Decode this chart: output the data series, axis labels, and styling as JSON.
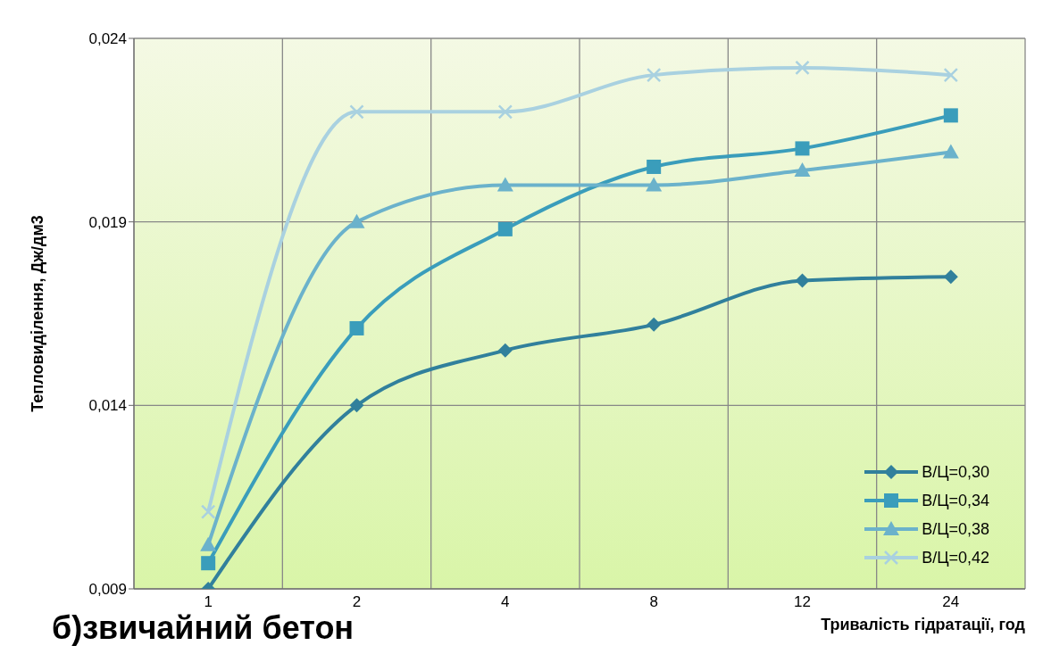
{
  "chart_data": {
    "type": "line",
    "xlabel": "Тривалість гідратації, год",
    "ylabel": "Тепловиділення, Дж/дм3",
    "annotations": [
      "б)звичайний бетон"
    ],
    "categories": [
      "1",
      "2",
      "4",
      "8",
      "12",
      "24"
    ],
    "series": [
      {
        "name": "В/Ц=0,30",
        "color": "#31809c",
        "marker": "diamond",
        "values": [
          0.009,
          0.014,
          0.0155,
          0.0162,
          0.0174,
          0.0175
        ]
      },
      {
        "name": "В/Ц=0,34",
        "color": "#3a9dbb",
        "marker": "square",
        "values": [
          0.0097,
          0.0161,
          0.0188,
          0.0205,
          0.021,
          0.0219
        ]
      },
      {
        "name": "В/Ц=0,38",
        "color": "#6bb2cb",
        "marker": "triangle",
        "values": [
          0.0102,
          0.019,
          0.02,
          0.02,
          0.0204,
          0.0209
        ]
      },
      {
        "name": "В/Ц=0,42",
        "color": "#a9d1e0",
        "marker": "cross",
        "values": [
          0.0111,
          0.022,
          0.022,
          0.023,
          0.0232,
          0.023
        ]
      }
    ],
    "ylim": [
      0.009,
      0.024
    ],
    "yticks": [
      {
        "value": 0.009,
        "label": "0,009"
      },
      {
        "value": 0.014,
        "label": "0,014"
      },
      {
        "value": 0.019,
        "label": "0,019"
      },
      {
        "value": 0.024,
        "label": "0,024"
      }
    ],
    "grid": true,
    "legend": "bottom right"
  }
}
